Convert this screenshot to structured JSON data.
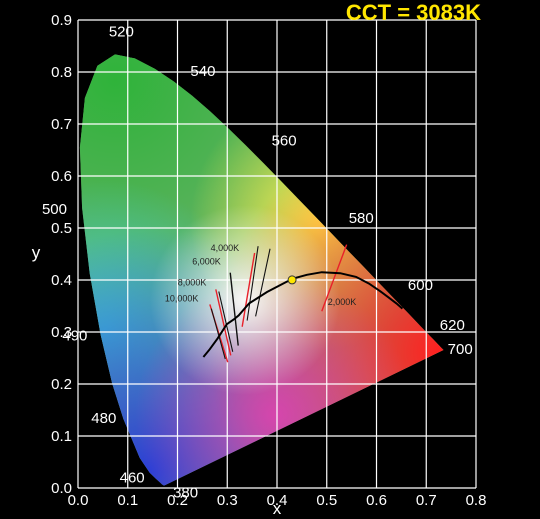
{
  "header": {
    "cct_readout": "CCT = 3083K"
  },
  "chart_data": {
    "type": "scatter",
    "title": "",
    "xlabel": "x",
    "ylabel": "y",
    "xlim": [
      0.0,
      0.8
    ],
    "ylim": [
      0.0,
      0.9
    ],
    "grid": true,
    "x_ticks": [
      "0.0",
      "0.1",
      "0.2",
      "0.3",
      "0.4",
      "0.5",
      "0.6",
      "0.7",
      "0.8"
    ],
    "y_ticks": [
      "0.0",
      "0.1",
      "0.2",
      "0.3",
      "0.4",
      "0.5",
      "0.6",
      "0.7",
      "0.8",
      "0.9"
    ],
    "spectral_locus": [
      [
        0.1741,
        0.005
      ],
      [
        0.1733,
        0.0048
      ],
      [
        0.1726,
        0.0048
      ],
      [
        0.1714,
        0.0051
      ],
      [
        0.1689,
        0.0069
      ],
      [
        0.1644,
        0.0109
      ],
      [
        0.1566,
        0.0177
      ],
      [
        0.144,
        0.0297
      ],
      [
        0.1241,
        0.0578
      ],
      [
        0.0913,
        0.1327
      ],
      [
        0.0687,
        0.2007
      ],
      [
        0.0454,
        0.295
      ],
      [
        0.0235,
        0.4127
      ],
      [
        0.0082,
        0.5384
      ],
      [
        0.0039,
        0.6548
      ],
      [
        0.0139,
        0.7502
      ],
      [
        0.0389,
        0.812
      ],
      [
        0.0743,
        0.8338
      ],
      [
        0.1142,
        0.8262
      ],
      [
        0.1547,
        0.8059
      ],
      [
        0.1929,
        0.7816
      ],
      [
        0.2296,
        0.7543
      ],
      [
        0.2658,
        0.7243
      ],
      [
        0.3016,
        0.6923
      ],
      [
        0.3373,
        0.6589
      ],
      [
        0.3731,
        0.6245
      ],
      [
        0.4087,
        0.5896
      ],
      [
        0.4441,
        0.5547
      ],
      [
        0.4788,
        0.5202
      ],
      [
        0.5125,
        0.4866
      ],
      [
        0.5448,
        0.4544
      ],
      [
        0.5752,
        0.4242
      ],
      [
        0.6029,
        0.3965
      ],
      [
        0.627,
        0.3725
      ],
      [
        0.6482,
        0.3514
      ],
      [
        0.6658,
        0.334
      ],
      [
        0.6801,
        0.3197
      ],
      [
        0.6915,
        0.3083
      ],
      [
        0.7006,
        0.2993
      ],
      [
        0.7079,
        0.292
      ],
      [
        0.714,
        0.2859
      ],
      [
        0.719,
        0.2809
      ],
      [
        0.723,
        0.277
      ],
      [
        0.726,
        0.274
      ],
      [
        0.7283,
        0.2717
      ],
      [
        0.73,
        0.27
      ],
      [
        0.7311,
        0.2689
      ],
      [
        0.732,
        0.268
      ],
      [
        0.7327,
        0.2673
      ],
      [
        0.7334,
        0.2666
      ],
      [
        0.734,
        0.266
      ],
      [
        0.7344,
        0.2656
      ],
      [
        0.7346,
        0.2654
      ],
      [
        0.7347,
        0.2653
      ]
    ],
    "wavelength_labels": [
      {
        "text": "380",
        "x": 0.175,
        "y": 0.005
      },
      {
        "text": "460",
        "x": 0.144,
        "y": 0.03
      },
      {
        "text": "480",
        "x": 0.091,
        "y": 0.133
      },
      {
        "text": "490",
        "x": 0.045,
        "y": 0.295
      },
      {
        "text": "500",
        "x": 0.008,
        "y": 0.538
      },
      {
        "text": "520",
        "x": 0.074,
        "y": 0.834
      },
      {
        "text": "540",
        "x": 0.23,
        "y": 0.754
      },
      {
        "text": "560",
        "x": 0.373,
        "y": 0.624
      },
      {
        "text": "580",
        "x": 0.512,
        "y": 0.487
      },
      {
        "text": "600",
        "x": 0.627,
        "y": 0.373
      },
      {
        "text": "620",
        "x": 0.691,
        "y": 0.308
      },
      {
        "text": "700",
        "x": 0.735,
        "y": 0.265
      }
    ],
    "planckian_locus": [
      [
        0.252,
        0.252
      ],
      [
        0.265,
        0.267
      ],
      [
        0.281,
        0.288
      ],
      [
        0.299,
        0.315
      ],
      [
        0.313,
        0.324
      ],
      [
        0.323,
        0.332
      ],
      [
        0.344,
        0.355
      ],
      [
        0.38,
        0.377
      ],
      [
        0.42,
        0.397
      ],
      [
        0.437,
        0.404
      ],
      [
        0.46,
        0.41
      ],
      [
        0.49,
        0.415
      ],
      [
        0.527,
        0.413
      ],
      [
        0.559,
        0.406
      ],
      [
        0.585,
        0.393
      ],
      [
        0.608,
        0.378
      ],
      [
        0.625,
        0.366
      ],
      [
        0.64,
        0.355
      ],
      [
        0.652,
        0.345
      ]
    ],
    "isotherms": [
      {
        "label": "10,000K",
        "x1": 0.265,
        "y1": 0.353,
        "x2": 0.301,
        "y2": 0.242
      },
      {
        "label": "8,000K",
        "x1": 0.277,
        "y1": 0.382,
        "x2": 0.307,
        "y2": 0.255
      },
      {
        "label": "6,000K",
        "x1": 0.306,
        "y1": 0.414,
        "x2": 0.322,
        "y2": 0.274
      },
      {
        "label": "4,000K",
        "x1": 0.355,
        "y1": 0.452,
        "x2": 0.33,
        "y2": 0.31
      },
      {
        "label": "2,000K",
        "x1": 0.54,
        "y1": 0.468,
        "x2": 0.49,
        "y2": 0.34
      }
    ],
    "measured_point": {
      "x": 0.4303,
      "y": 0.4002,
      "cct": "3083K"
    }
  }
}
